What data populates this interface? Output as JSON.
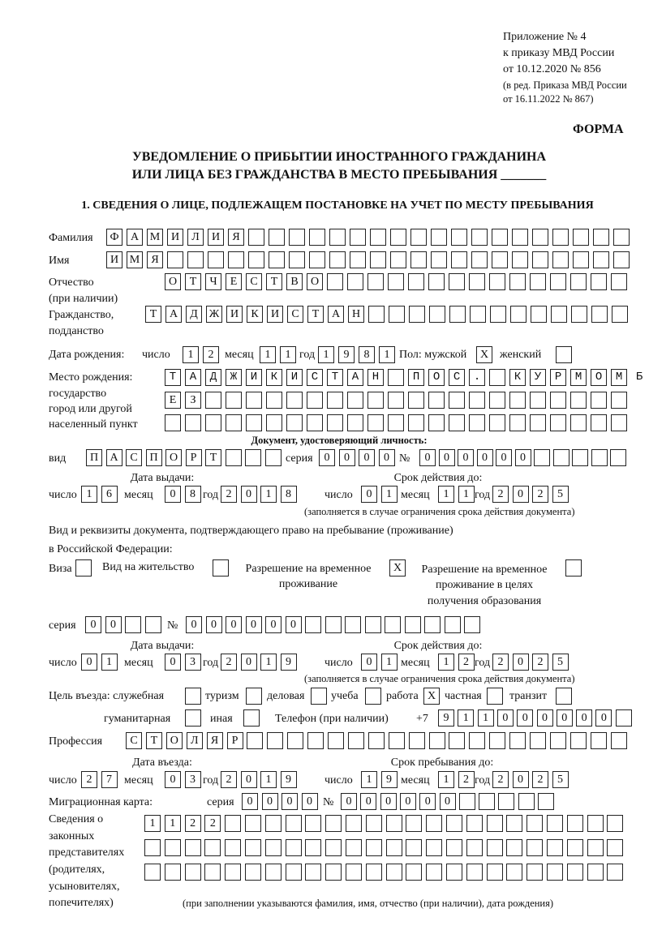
{
  "header": {
    "appendix": "Приложение № 4",
    "order": "к приказу МВД России",
    "order_date": "от 10.12.2020 № 856",
    "revision1": "(в ред. Приказа МВД России",
    "revision2": "от 16.11.2022 № 867)",
    "form_label": "ФОРМА",
    "title1": "УВЕДОМЛЕНИЕ О ПРИБЫТИИ ИНОСТРАННОГО ГРАЖДАНИНА",
    "title2": "ИЛИ ЛИЦА БЕЗ ГРАЖДАНСТВА В МЕСТО ПРЕБЫВАНИЯ _______",
    "section1": "1. СВЕДЕНИЯ О ЛИЦЕ, ПОДЛЕЖАЩЕМ ПОСТАНОВКЕ НА УЧЕТ ПО МЕСТУ ПРЕБЫВАНИЯ"
  },
  "labels": {
    "surname": "Фамилия",
    "name": "Имя",
    "patronymic1": "Отчество",
    "patronymic2": "(при наличии)",
    "citizenship1": "Гражданство,",
    "citizenship2": "подданство",
    "birth_date": "Дата рождения:",
    "day": "число",
    "month": "месяц",
    "year": "год",
    "sex": "Пол: мужской",
    "female": "женский",
    "birthplace1": "Место рождения:",
    "birthplace2": "государство",
    "birthplace3": "город или другой",
    "birthplace4": "населенный пункт",
    "id_doc": "Документ, удостоверяющий личность:",
    "kind": "вид",
    "series": "серия",
    "number": "№",
    "issue_date": "Дата выдачи:",
    "valid_until": "Срок действия до:",
    "validity_note": "(заполняется в случае ограничения срока действия документа)",
    "right_doc1": "Вид и реквизиты документа, подтверждающего право на пребывание (проживание)",
    "right_doc2": "в Российской Федерации:",
    "visa": "Виза",
    "residence": "Вид на жительство",
    "trp1": "Разрешение на временное",
    "trp2": "проживание",
    "trpe1": "Разрешение на временное",
    "trpe2": "проживание в целях",
    "trpe3": "получения образования",
    "purpose": "Цель въезда: служебная",
    "tourism": "туризм",
    "business": "деловая",
    "study": "учеба",
    "work": "работа",
    "private": "частная",
    "transit": "транзит",
    "humanitarian": "гуманитарная",
    "other": "иная",
    "phone": "Телефон (при наличии)",
    "phone_prefix": "+7",
    "profession": "Профессия",
    "entry_date": "Дата въезда:",
    "stay_until": "Срок пребывания до:",
    "migration_card": "Миграционная карта:",
    "reps1": "Сведения о",
    "reps2": "законных",
    "reps3": "представителях",
    "reps4": "(родителях,",
    "reps5": "усыновителях,",
    "reps6": "попечителях)",
    "reps_note": "(при заполнении указываются фамилия, имя, отчество (при наличии), дата рождения)"
  },
  "values": {
    "surname": "ФАМИЛИЯ",
    "name": "ИМЯ",
    "patronymic": "ОТЧЕСТВО",
    "citizenship": "ТАДЖИКИСТАН",
    "birth_day": "12",
    "birth_month": "11",
    "birth_year": "1981",
    "sex_male": "X",
    "sex_female": "",
    "birthplace_1": "ТАДЖИКИСТАН ПОС. КУРМОМБ",
    "birthplace_2": "ЕЗ",
    "birthplace_3": "",
    "id_kind": "ПАСПОРТ",
    "id_series": "0000",
    "id_number": "000000",
    "id_issue_day": "16",
    "id_issue_month": "08",
    "id_issue_year": "2018",
    "id_valid_day": "01",
    "id_valid_month": "11",
    "id_valid_year": "2025",
    "doc_visa": "",
    "doc_residence": "",
    "doc_trp": "X",
    "doc_trpe": "",
    "rd_series": "00",
    "rd_number": "000000",
    "rd_issue_day": "01",
    "rd_issue_month": "03",
    "rd_issue_year": "2019",
    "rd_valid_day": "01",
    "rd_valid_month": "12",
    "rd_valid_year": "2025",
    "p_official": "",
    "p_tourism": "",
    "p_business": "",
    "p_study": "",
    "p_work": "X",
    "p_private": "",
    "p_transit": "",
    "p_humanitarian": "",
    "p_other": "",
    "phone": "911000000",
    "profession": "СТОЛЯР",
    "entry_day": "27",
    "entry_month": "03",
    "entry_year": "2019",
    "stay_day": "19",
    "stay_month": "12",
    "stay_year": "2025",
    "mc_series": "0000",
    "mc_number": "000000",
    "reps_1": "1122",
    "reps_2": "",
    "reps_3": ""
  }
}
